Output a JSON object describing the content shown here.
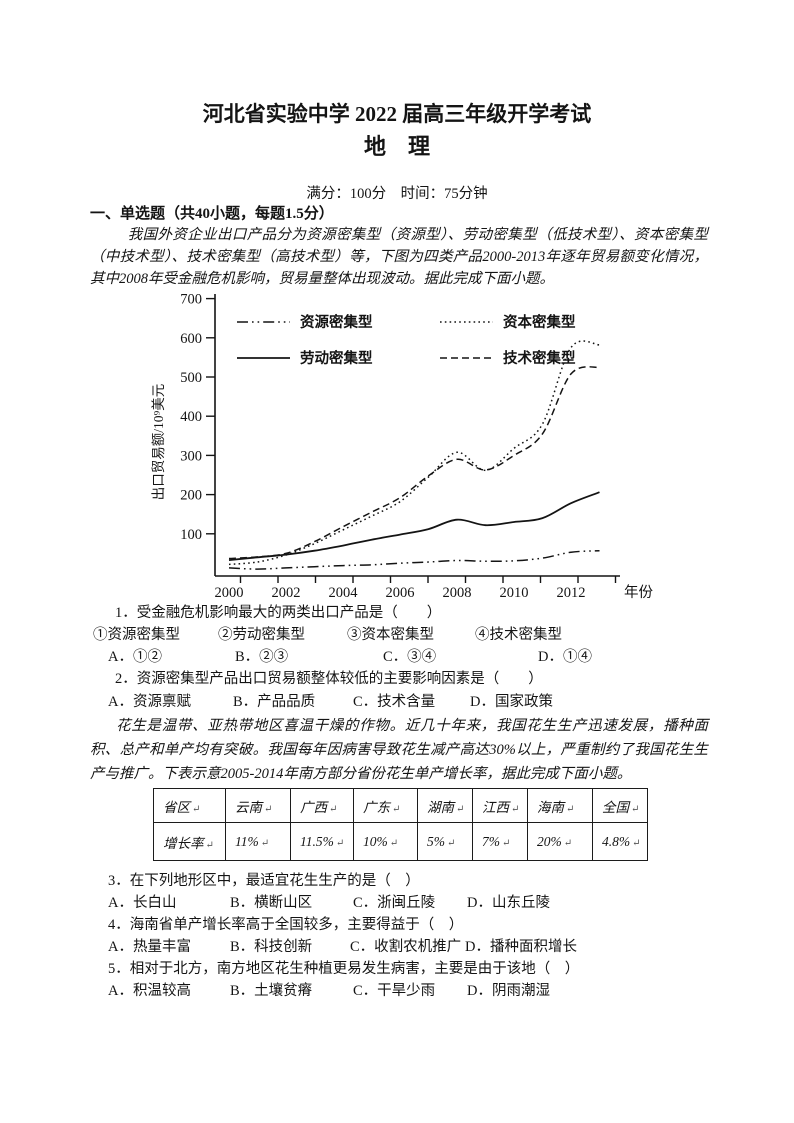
{
  "page": {
    "title": "河北省实验中学 2022 届高三年级开学考试",
    "subject": "地　理",
    "meta": "满分：100分　时间：75分钟",
    "section_heading": "一、单选题（共40小题，每题1.5分）"
  },
  "passages": {
    "export_intro": "我国外资企业出口产品分为资源密集型（资源型）、劳动密集型（低技术型）、资本密集型（中技术型）、技术密集型（高技术型）等，下图为四类产品2000-2013年逐年贸易额变化情况，其中2008年受金融危机影响，贸易量整体出现波动。据此完成下面小题。",
    "peanut_intro": "花生是温带、亚热带地区喜温干燥的作物。近几十年来，我国花生生产迅速发展，播种面积、总产和单产均有突破。我国每年因病害导致花生减产高达30%以上，严重制约了我国花生生产与推广。下表示意2005-2014年南方部分省份花生单产增长率，据此完成下面小题。"
  },
  "chart_data": {
    "type": "line",
    "title": "",
    "xlabel": "年份",
    "ylabel": "出口贸易额/10⁹美元",
    "x": [
      2000,
      2001,
      2002,
      2003,
      2004,
      2005,
      2006,
      2007,
      2008,
      2009,
      2010,
      2011,
      2012,
      2013
    ],
    "xlim": [
      2000,
      2013
    ],
    "ylim": [
      0,
      700
    ],
    "yticks": [
      100,
      200,
      300,
      400,
      500,
      600,
      700
    ],
    "xtick_labels": [
      2000,
      2002,
      2004,
      2006,
      2008,
      2010,
      2012
    ],
    "grid": false,
    "legend_position": "top-inside",
    "series": [
      {
        "name": "资源密集型",
        "style": "dashdotdot",
        "values": [
          13,
          10,
          13,
          16,
          19,
          21,
          25,
          28,
          32,
          30,
          31,
          38,
          53,
          57
        ]
      },
      {
        "name": "资本密集型",
        "style": "dotted",
        "values": [
          22,
          28,
          46,
          75,
          110,
          145,
          182,
          245,
          308,
          262,
          318,
          380,
          575,
          582
        ]
      },
      {
        "name": "劳动密集型",
        "style": "solid",
        "values": [
          33,
          40,
          47,
          57,
          70,
          85,
          98,
          112,
          136,
          122,
          130,
          140,
          178,
          206
        ]
      },
      {
        "name": "技术密集型",
        "style": "dashed",
        "values": [
          37,
          41,
          50,
          80,
          118,
          155,
          192,
          248,
          290,
          263,
          300,
          355,
          508,
          525
        ]
      }
    ]
  },
  "questions": [
    {
      "stem": "1．受金融危机影响最大的两类出口产品是（　　）",
      "sub_options": [
        "①资源密集型",
        "②劳动密集型",
        "③资本密集型",
        "④技术密集型"
      ],
      "choices": [
        "A．①②",
        "B．②③",
        "C．③④",
        "D．①④"
      ]
    },
    {
      "stem": "2．资源密集型产品出口贸易额整体较低的主要影响因素是（　　）",
      "choices": [
        "A．资源禀赋",
        "B．产品品质",
        "C．技术含量",
        "D．国家政策"
      ]
    },
    {
      "stem": "3．在下列地形区中，最适宜花生生产的是（　）",
      "choices": [
        "A．长白山",
        "B．横断山区",
        "C．浙闽丘陵",
        "D．山东丘陵"
      ]
    },
    {
      "stem": "4．海南省单产增长率高于全国较多，主要得益于（　）",
      "choices": [
        "A．热量丰富",
        "B．科技创新",
        "C．收割农机推广",
        "D．播种面积增长"
      ]
    },
    {
      "stem": "5．相对于北方，南方地区花生种植更易发生病害，主要是由于该地（　）",
      "choices": [
        "A．积温较高",
        "B．土壤贫瘠",
        "C．干旱少雨",
        "D．阴雨潮湿"
      ]
    }
  ],
  "table": {
    "headers": [
      "省区",
      "云南",
      "广西",
      "广东",
      "湖南",
      "江西",
      "海南",
      "全国"
    ],
    "rows": [
      [
        "增长率",
        "11%",
        "11.5%",
        "10%",
        "5%",
        "7%",
        "20%",
        "4.8%"
      ]
    ],
    "return_mark": "↵"
  },
  "colors": {
    "ink": "#141414",
    "table_border": "#1c1c1c"
  }
}
